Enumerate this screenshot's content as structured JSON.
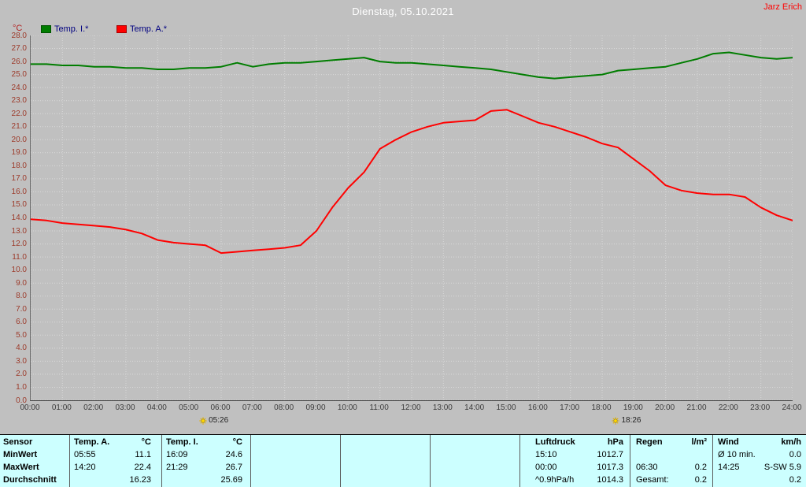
{
  "header": {
    "title": "Dienstag, 05.10.2021",
    "user": "Jarz Erich"
  },
  "legend": {
    "axis_unit": "°C",
    "series": [
      {
        "label": "Temp. I.*",
        "color": "#007d00"
      },
      {
        "label": "Temp. A.*",
        "color": "#ff0000"
      }
    ]
  },
  "chart_data": {
    "type": "line",
    "title": "Dienstag, 05.10.2021",
    "ylabel": "°C",
    "xlabel": "",
    "ylim": [
      0,
      28
    ],
    "y_tick_step": 1,
    "grid": true,
    "legend_position": "top-left",
    "x_unit": "hours",
    "x": [
      0,
      0.5,
      1,
      1.5,
      2,
      2.5,
      3,
      3.5,
      4,
      4.5,
      5,
      5.5,
      6,
      6.5,
      7,
      7.5,
      8,
      8.5,
      9,
      9.5,
      10,
      10.5,
      11,
      11.5,
      12,
      12.5,
      13,
      13.5,
      14,
      14.5,
      15,
      15.5,
      16,
      16.5,
      17,
      17.5,
      18,
      18.5,
      19,
      19.5,
      20,
      20.5,
      21,
      21.5,
      22,
      22.5,
      23,
      23.5,
      24
    ],
    "series": [
      {
        "name": "Temp. I.*",
        "color": "#007d00",
        "values": [
          25.8,
          25.8,
          25.7,
          25.7,
          25.6,
          25.6,
          25.5,
          25.5,
          25.4,
          25.4,
          25.5,
          25.5,
          25.6,
          25.9,
          25.6,
          25.8,
          25.9,
          25.9,
          26.0,
          26.1,
          26.2,
          26.3,
          26.0,
          25.9,
          25.9,
          25.8,
          25.7,
          25.6,
          25.5,
          25.4,
          25.2,
          25.0,
          24.8,
          24.7,
          24.8,
          24.9,
          25.0,
          25.3,
          25.4,
          25.5,
          25.6,
          25.9,
          26.2,
          26.6,
          26.7,
          26.5,
          26.3,
          26.2,
          26.3
        ]
      },
      {
        "name": "Temp. A.*",
        "color": "#ff0000",
        "values": [
          13.9,
          13.8,
          13.6,
          13.5,
          13.4,
          13.3,
          13.1,
          12.8,
          12.3,
          12.1,
          12.0,
          11.9,
          11.3,
          11.4,
          11.5,
          11.6,
          11.7,
          11.9,
          13.0,
          14.8,
          16.3,
          17.5,
          19.3,
          20.0,
          20.6,
          21.0,
          21.3,
          21.4,
          21.5,
          22.2,
          22.3,
          21.8,
          21.3,
          21.0,
          20.6,
          20.2,
          19.7,
          19.4,
          18.5,
          17.6,
          16.5,
          16.1,
          15.9,
          15.8,
          15.8,
          15.6,
          14.8,
          14.2,
          13.8
        ]
      }
    ],
    "x_ticks": [
      "00:00",
      "01:00",
      "02:00",
      "03:00",
      "04:00",
      "05:00",
      "06:00",
      "07:00",
      "08:00",
      "09:00",
      "10:00",
      "11:00",
      "12:00",
      "13:00",
      "14:00",
      "15:00",
      "16:00",
      "17:00",
      "18:00",
      "19:00",
      "20:00",
      "21:00",
      "22:00",
      "23:00",
      "24:00"
    ],
    "y_ticks": [
      "28.0",
      "27.0",
      "26.0",
      "25.0",
      "24.0",
      "23.0",
      "22.0",
      "21.0",
      "20.0",
      "19.0",
      "18.0",
      "17.0",
      "16.0",
      "15.0",
      "14.0",
      "13.0",
      "12.0",
      "11.0",
      "10.0",
      "9.0",
      "8.0",
      "7.0",
      "6.0",
      "5.0",
      "4.0",
      "3.0",
      "2.0",
      "1.0",
      "0.0"
    ]
  },
  "sun_markers": [
    {
      "name": "sunrise",
      "hour": 5.433,
      "label": "05:26"
    },
    {
      "name": "sunset",
      "hour": 18.433,
      "label": "18:26"
    }
  ],
  "stats": {
    "headers": {
      "sensor": "Sensor",
      "temp_a": "Temp. A.",
      "temp_a_unit": "°C",
      "temp_i": "Temp. I.",
      "temp_i_unit": "°C",
      "pressure": "Luftdruck",
      "pressure_unit": "hPa",
      "rain": "Regen",
      "rain_unit": "l/m²",
      "wind": "Wind",
      "wind_unit": "km/h"
    },
    "row_labels": {
      "min": "MinWert",
      "max": "MaxWert",
      "avg": "Durchschnitt"
    },
    "temp_a": {
      "min_time": "05:55",
      "min": "11.1",
      "max_time": "14:20",
      "max": "22.4",
      "avg": "16.23"
    },
    "temp_i": {
      "min_time": "16:09",
      "min": "24.6",
      "max_time": "21:29",
      "max": "26.7",
      "avg": "25.69"
    },
    "pressure": {
      "min_time": "15:10",
      "min": "1012.7",
      "max_time": "00:00",
      "max": "1017.3",
      "trend": "^0.9hPa/h",
      "avg": "1014.3"
    },
    "rain": {
      "max_time": "06:30",
      "max": "0.2",
      "total_label": "Gesamt:",
      "total": "0.2"
    },
    "wind": {
      "min_label": "Ø 10 min.",
      "min": "0.0",
      "max_time": "14:25",
      "max": "S-SW 5.9",
      "avg": "0.2"
    }
  }
}
